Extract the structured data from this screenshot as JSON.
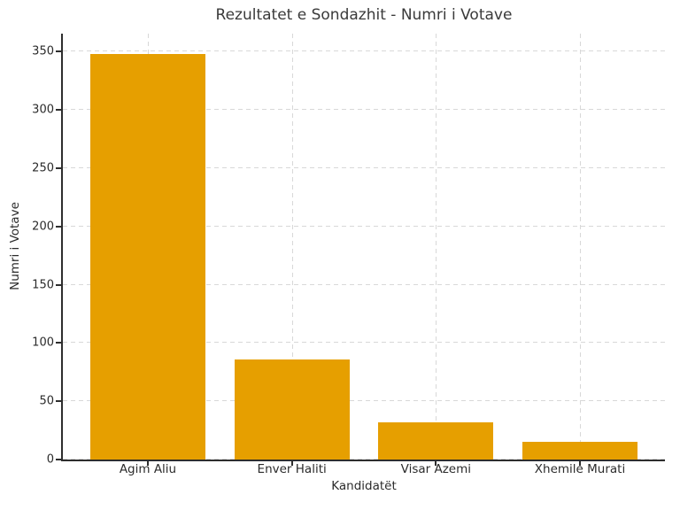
{
  "chart_data": {
    "type": "bar",
    "title": "Rezultatet e Sondazhit - Numri i Votave",
    "xlabel": "Kandidatët",
    "ylabel": "Numri i Votave",
    "categories": [
      "Agim Aliu",
      "Enver Haliti",
      "Visar Azemi",
      "Xhemile Murati"
    ],
    "values": [
      348,
      86,
      32,
      15
    ],
    "yticks": [
      0,
      50,
      100,
      150,
      200,
      250,
      300,
      350
    ],
    "ylim": [
      0,
      365.4
    ],
    "bar_color": "#E69F00",
    "grid": "dashed horizontal and vertical, light gray",
    "legend": "none"
  },
  "colors": {
    "bar": "#E69F00",
    "grid": "#d8d8d8",
    "spine": "#2e2e2e",
    "text": "#2b2b2b",
    "background": "#ffffff"
  }
}
